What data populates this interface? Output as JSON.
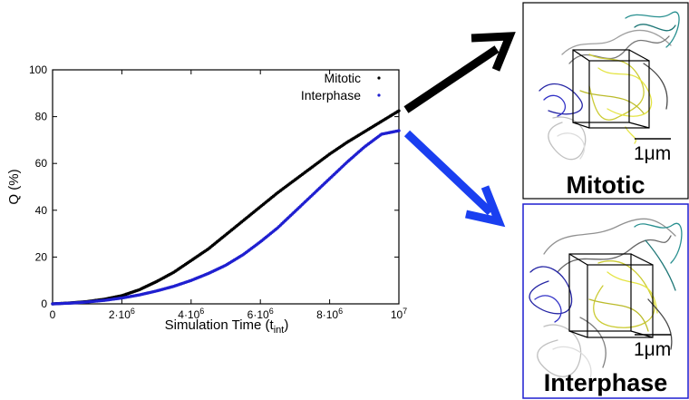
{
  "chart_data": {
    "type": "scatter",
    "xlabel": "Simulation Time (t",
    "xlabel_sub": "int",
    "xlabel_close": ")",
    "ylabel": "Q (%)",
    "xlim": [
      0,
      10000000
    ],
    "ylim": [
      0,
      100
    ],
    "x_ticks": [
      {
        "value": 0,
        "base": "0",
        "exp": ""
      },
      {
        "value": 2000000,
        "base": "2·10",
        "exp": "6"
      },
      {
        "value": 4000000,
        "base": "4·10",
        "exp": "6"
      },
      {
        "value": 6000000,
        "base": "6·10",
        "exp": "6"
      },
      {
        "value": 8000000,
        "base": "8·10",
        "exp": "6"
      },
      {
        "value": 10000000,
        "base": "10",
        "exp": "7"
      }
    ],
    "y_ticks": [
      {
        "value": 0,
        "label": "0"
      },
      {
        "value": 20,
        "label": "20"
      },
      {
        "value": 40,
        "label": "40"
      },
      {
        "value": 60,
        "label": "60"
      },
      {
        "value": 80,
        "label": "80"
      },
      {
        "value": 100,
        "label": "100"
      }
    ],
    "legend_position": "top-right",
    "grid": false,
    "series": [
      {
        "name": "Mitotic",
        "color": "#000000",
        "x": [
          0,
          500000,
          1000000,
          1500000,
          2000000,
          2500000,
          3000000,
          3500000,
          4000000,
          4500000,
          5000000,
          5500000,
          6000000,
          6500000,
          7000000,
          7500000,
          8000000,
          8500000,
          9000000,
          9500000,
          10000000
        ],
        "y": [
          0,
          0.4,
          1.0,
          2.0,
          3.5,
          6.0,
          9.5,
          13.5,
          18.5,
          23.5,
          29.5,
          35.5,
          41.5,
          47.5,
          53.0,
          58.5,
          64.0,
          69.0,
          73.5,
          78.0,
          82.5
        ]
      },
      {
        "name": "Interphase",
        "color": "#1f1fd0",
        "x": [
          0,
          500000,
          1000000,
          1500000,
          2000000,
          2500000,
          3000000,
          3500000,
          4000000,
          4500000,
          5000000,
          5500000,
          6000000,
          6500000,
          7000000,
          7500000,
          8000000,
          8500000,
          9000000,
          9500000,
          10000000
        ],
        "y": [
          0,
          0.3,
          0.8,
          1.5,
          2.5,
          3.8,
          5.5,
          7.5,
          10.0,
          13.0,
          16.5,
          21.0,
          26.5,
          32.5,
          39.5,
          46.5,
          53.5,
          60.5,
          67.0,
          72.5,
          74.0
        ]
      }
    ]
  },
  "panels": {
    "top": {
      "title": "Mitotic",
      "scale": "1μm",
      "border_color": "#000000",
      "arrow_color": "#000000"
    },
    "bottom": {
      "title": "Interphase",
      "scale": "1μm",
      "border_color": "#1f1fd0",
      "arrow_color": "#1a3ff0"
    }
  }
}
